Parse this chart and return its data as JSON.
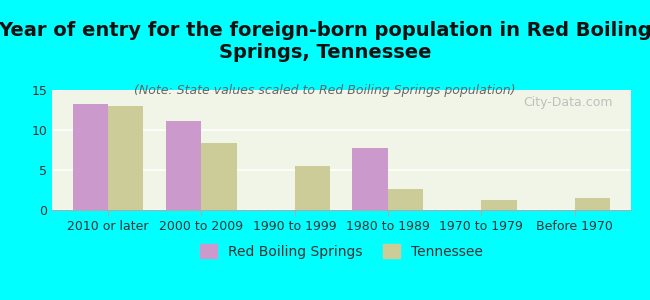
{
  "title": "Year of entry for the foreign-born population in Red Boiling\nSprings, Tennessee",
  "subtitle": "(Note: State values scaled to Red Boiling Springs population)",
  "categories": [
    "2010 or later",
    "2000 to 2009",
    "1990 to 1999",
    "1980 to 1989",
    "1970 to 1979",
    "Before 1970"
  ],
  "red_boiling_springs": [
    13.3,
    11.1,
    0,
    7.7,
    0,
    0
  ],
  "tennessee": [
    13.0,
    8.4,
    5.5,
    2.6,
    1.2,
    1.5
  ],
  "bar_color_rbs": "#cc99cc",
  "bar_color_tn": "#cccc99",
  "background_color": "#00ffff",
  "plot_bg_start": "#f0f5e8",
  "plot_bg_end": "#ffffff",
  "ylim": [
    0,
    15
  ],
  "yticks": [
    0,
    5,
    10,
    15
  ],
  "legend_rbs": "Red Boiling Springs",
  "legend_tn": "Tennessee",
  "watermark": "City-Data.com",
  "title_fontsize": 14,
  "subtitle_fontsize": 9,
  "axis_fontsize": 9,
  "legend_fontsize": 10
}
